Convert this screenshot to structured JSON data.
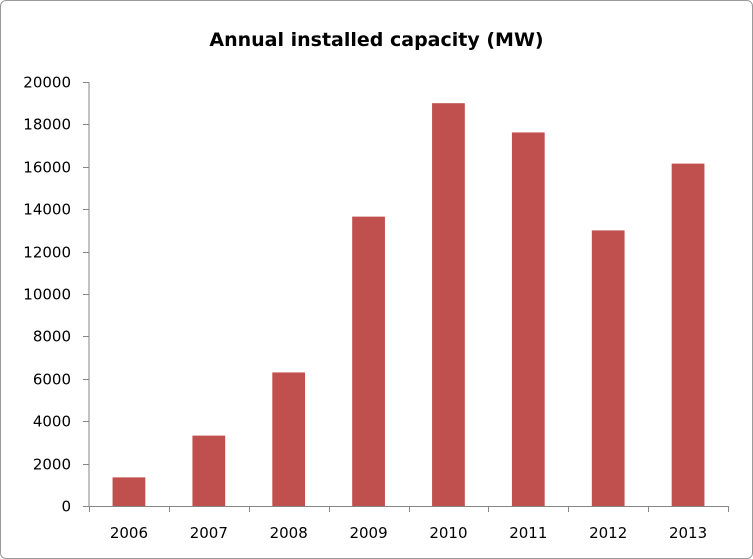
{
  "chart_data": {
    "type": "bar",
    "title": "Annual installed capacity (MW)",
    "xlabel": "",
    "ylabel": "",
    "categories": [
      "2006",
      "2007",
      "2008",
      "2009",
      "2010",
      "2011",
      "2012",
      "2013"
    ],
    "values": [
      1350,
      3320,
      6300,
      13650,
      19000,
      17620,
      13000,
      16150
    ],
    "ylim": [
      0,
      20000
    ],
    "ytick_step": 2000,
    "grid": false,
    "legend": "none",
    "bar_color": "#c0504d",
    "axis_color": "#868686"
  }
}
